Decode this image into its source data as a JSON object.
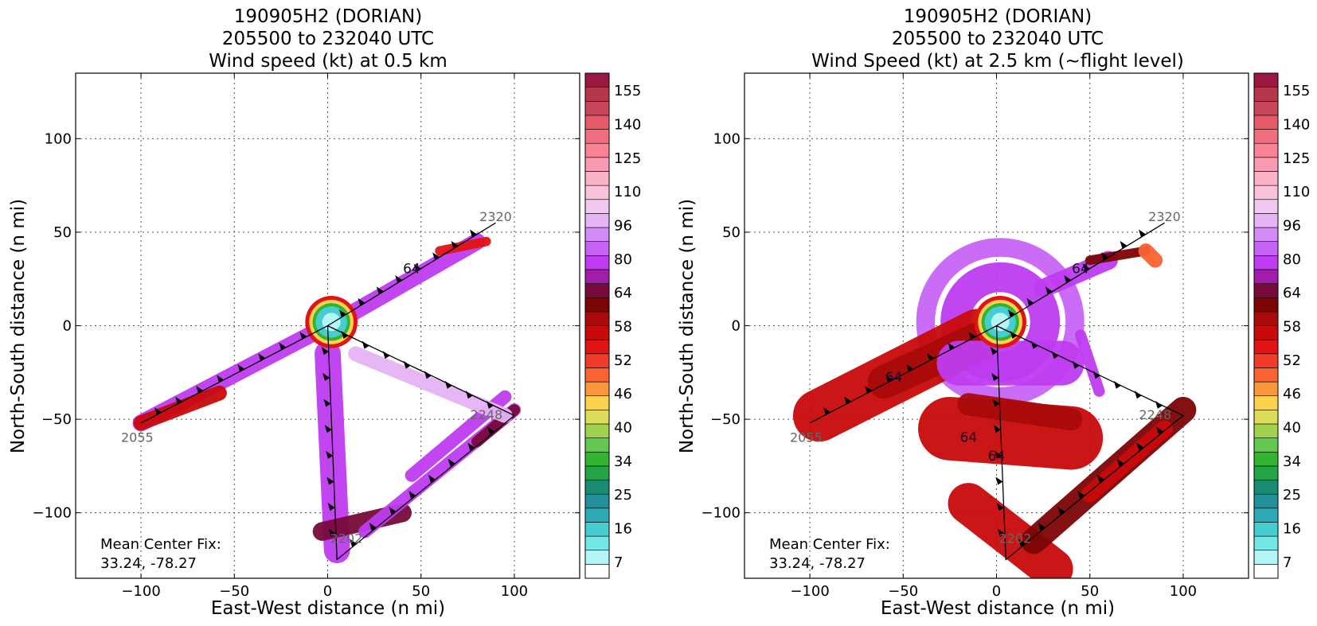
{
  "figure": {
    "panels": [
      {
        "title_lines": [
          "190905H2 (DORIAN)",
          "205500 to 232040 UTC",
          "Wind speed (kt) at 0.5 km"
        ],
        "mean_center_fix": [
          "Mean Center Fix:",
          "33.24, -78.27"
        ]
      },
      {
        "title_lines": [
          "190905H2 (DORIAN)",
          "205500 to 232040 UTC",
          "Wind Speed (kt) at 2.5 km (~flight level)"
        ],
        "mean_center_fix": [
          "Mean Center Fix:",
          "33.24, -78.27"
        ]
      }
    ]
  },
  "chart_data": [
    {
      "type": "scatter",
      "title": "190905H2 (DORIAN) 205500 to 232040 UTC Wind speed (kt) at 0.5 km",
      "xlabel": "East-West distance (n mi)",
      "ylabel": "North-South distance (n mi)",
      "xlim": [
        -135,
        135
      ],
      "ylim": [
        -135,
        135
      ],
      "xticks": [
        -100,
        -50,
        0,
        50,
        100
      ],
      "yticks": [
        -100,
        -50,
        0,
        50,
        100
      ],
      "grid": true,
      "colorbar": {
        "label_ticks": [
          7,
          16,
          25,
          34,
          40,
          46,
          52,
          58,
          64,
          80,
          96,
          110,
          125,
          140,
          155
        ],
        "colors": [
          "#ffffff",
          "#b4f5f5",
          "#73e6e6",
          "#46cdd2",
          "#2daab4",
          "#23919b",
          "#198c73",
          "#23a546",
          "#32b432",
          "#64c850",
          "#a0d250",
          "#dcdc5a",
          "#fad250",
          "#fa963c",
          "#fa6432",
          "#f03c28",
          "#e11414",
          "#c80a0a",
          "#aa0a0a",
          "#7d0505",
          "#780a3c",
          "#a01eaa",
          "#be3cf0",
          "#c864f5",
          "#d28cf5",
          "#e6b4f5",
          "#f0c8f0",
          "#fac3dc",
          "#fab4c8",
          "#fa9bb4",
          "#fa8296",
          "#f06e7d",
          "#e65a69",
          "#c8465a",
          "#b4374b",
          "#9b1941"
        ]
      },
      "flight_track": {
        "points": [
          [
            -100,
            -52
          ],
          [
            0,
            0
          ],
          [
            5,
            -125
          ],
          [
            100,
            -48
          ],
          [
            0,
            0
          ],
          [
            90,
            55
          ]
        ],
        "time_labels": [
          {
            "text": "2055",
            "x": -102,
            "y": -62
          },
          {
            "text": "2320",
            "x": 90,
            "y": 56
          },
          {
            "text": "2248",
            "x": 85,
            "y": -50
          },
          {
            "text": "2202",
            "x": 10,
            "y": -116
          }
        ]
      },
      "annotations": [
        "64"
      ],
      "swaths": [
        {
          "from": [
            -100,
            -52
          ],
          "to": [
            0,
            0
          ],
          "width": 9,
          "color": "#be3cf0"
        },
        {
          "from": [
            -100,
            -52
          ],
          "to": [
            -58,
            -36
          ],
          "width": 8,
          "color": "#c80a0a"
        },
        {
          "from": [
            0,
            -15
          ],
          "to": [
            5,
            -120
          ],
          "width": 14,
          "color": "#be3cf0"
        },
        {
          "from": [
            -3,
            -110
          ],
          "to": [
            40,
            -100
          ],
          "width": 10,
          "color": "#780a3c"
        },
        {
          "from": [
            20,
            -110
          ],
          "to": [
            100,
            -45
          ],
          "width": 7,
          "color": "#be3cf0"
        },
        {
          "from": [
            45,
            -80
          ],
          "to": [
            95,
            -38
          ],
          "width": 7,
          "color": "#be3cf0"
        },
        {
          "from": [
            80,
            -62
          ],
          "to": [
            100,
            -45
          ],
          "width": 6,
          "color": "#780a3c"
        },
        {
          "from": [
            15,
            -15
          ],
          "to": [
            95,
            -48
          ],
          "width": 8,
          "color": "#e6b4f5"
        },
        {
          "from": [
            10,
            5
          ],
          "to": [
            80,
            45
          ],
          "width": 9,
          "color": "#be3cf0"
        },
        {
          "from": [
            60,
            40
          ],
          "to": [
            85,
            45
          ],
          "width": 5,
          "color": "#e11414"
        }
      ],
      "eye": {
        "center": [
          2,
          2
        ],
        "radius": 14
      }
    },
    {
      "type": "scatter",
      "title": "190905H2 (DORIAN) 205500 to 232040 UTC Wind Speed (kt) at 2.5 km (~flight level)",
      "xlabel": "East-West distance (n mi)",
      "ylabel": "North-South distance (n mi)",
      "xlim": [
        -135,
        135
      ],
      "ylim": [
        -135,
        135
      ],
      "xticks": [
        -100,
        -50,
        0,
        50,
        100
      ],
      "yticks": [
        -100,
        -50,
        0,
        50,
        100
      ],
      "grid": true,
      "colorbar": {
        "label_ticks": [
          7,
          16,
          25,
          34,
          40,
          46,
          52,
          58,
          64,
          80,
          96,
          110,
          125,
          140,
          155
        ],
        "colors": [
          "#ffffff",
          "#b4f5f5",
          "#73e6e6",
          "#46cdd2",
          "#2daab4",
          "#23919b",
          "#198c73",
          "#23a546",
          "#32b432",
          "#64c850",
          "#a0d250",
          "#dcdc5a",
          "#fad250",
          "#fa963c",
          "#fa6432",
          "#f03c28",
          "#e11414",
          "#c80a0a",
          "#aa0a0a",
          "#7d0505",
          "#780a3c",
          "#a01eaa",
          "#be3cf0",
          "#c864f5",
          "#d28cf5",
          "#e6b4f5",
          "#f0c8f0",
          "#fac3dc",
          "#fab4c8",
          "#fa9bb4",
          "#fa8296",
          "#f06e7d",
          "#e65a69",
          "#c8465a",
          "#b4374b",
          "#9b1941"
        ]
      },
      "flight_track": {
        "points": [
          [
            -100,
            -52
          ],
          [
            0,
            0
          ],
          [
            5,
            -125
          ],
          [
            100,
            -48
          ],
          [
            0,
            0
          ],
          [
            90,
            55
          ]
        ],
        "time_labels": [
          {
            "text": "2055",
            "x": -102,
            "y": -62
          },
          {
            "text": "2320",
            "x": 90,
            "y": 56
          },
          {
            "text": "2248",
            "x": 85,
            "y": -50
          },
          {
            "text": "2202",
            "x": 10,
            "y": -116
          }
        ]
      },
      "annotations": [
        "64",
        "64",
        "64",
        "64"
      ],
      "swaths": [
        {
          "from": [
            -95,
            -48
          ],
          "to": [
            -10,
            -5
          ],
          "width": 28,
          "color": "#c80a0a"
        },
        {
          "from": [
            -60,
            -30
          ],
          "to": [
            -5,
            -5
          ],
          "width": 18,
          "color": "#aa0a0a"
        },
        {
          "from": [
            -20,
            -20
          ],
          "to": [
            35,
            -20
          ],
          "width": 24,
          "color": "#be3cf0"
        },
        {
          "from": [
            -25,
            -55
          ],
          "to": [
            40,
            -60
          ],
          "width": 34,
          "color": "#c80a0a"
        },
        {
          "from": [
            -15,
            -42
          ],
          "to": [
            40,
            -50
          ],
          "width": 12,
          "color": "#aa0a0a"
        },
        {
          "from": [
            -15,
            -95
          ],
          "to": [
            30,
            -130
          ],
          "width": 22,
          "color": "#c80a0a"
        },
        {
          "from": [
            20,
            -115
          ],
          "to": [
            100,
            -45
          ],
          "width": 14,
          "color": "#7d0505"
        },
        {
          "from": [
            50,
            -90
          ],
          "to": [
            90,
            -55
          ],
          "width": 9,
          "color": "#c80a0a"
        },
        {
          "from": [
            25,
            20
          ],
          "to": [
            60,
            35
          ],
          "width": 10,
          "color": "#be3cf0"
        },
        {
          "from": [
            50,
            35
          ],
          "to": [
            80,
            40
          ],
          "width": 5,
          "color": "#7d0505"
        },
        {
          "from": [
            80,
            40
          ],
          "to": [
            85,
            35
          ],
          "width": 8,
          "color": "#fa6432"
        },
        {
          "from": [
            45,
            -5
          ],
          "to": [
            55,
            -35
          ],
          "width": 6,
          "color": "#be3cf0"
        }
      ],
      "rings": [
        {
          "center": [
            2,
            2
          ],
          "radius": 24,
          "width": 16,
          "color": "#be3cf0"
        },
        {
          "center": [
            2,
            2
          ],
          "radius": 40,
          "width": 10,
          "color": "#c864f5"
        }
      ],
      "eye": {
        "center": [
          2,
          2
        ],
        "radius": 14
      }
    }
  ]
}
